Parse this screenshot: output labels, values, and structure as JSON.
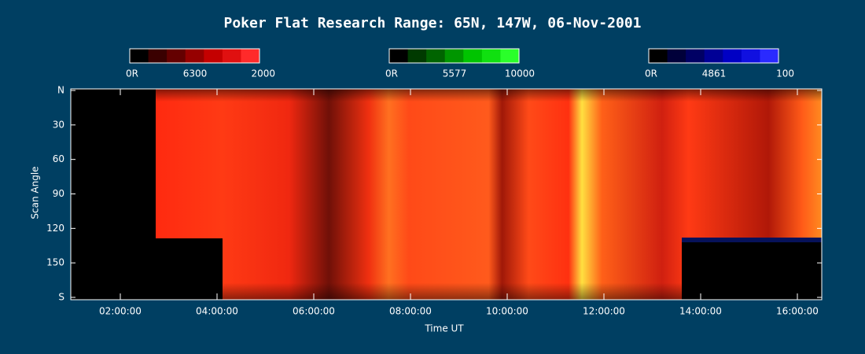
{
  "title": "Poker Flat Research Range: 65N, 147W, 06-Nov-2001",
  "colorbars": [
    {
      "labels": [
        "0R",
        "6300",
        "2000"
      ],
      "colors": [
        "#000000",
        "#3a0000",
        "#640000",
        "#960000",
        "#c40000",
        "#e01010",
        "#ff2a2a"
      ]
    },
    {
      "labels": [
        "0R",
        "5577",
        "10000"
      ],
      "colors": [
        "#000000",
        "#003a00",
        "#006400",
        "#009600",
        "#00c400",
        "#10e010",
        "#2aff2a"
      ]
    },
    {
      "labels": [
        "0R",
        "4861",
        "100"
      ],
      "colors": [
        "#000000",
        "#00003a",
        "#000064",
        "#000096",
        "#0000c4",
        "#1010e0",
        "#2a2aff"
      ]
    }
  ],
  "y_axis": {
    "label": "Scan Angle",
    "ticks": [
      "N",
      "30",
      "60",
      "90",
      "120",
      "150",
      "S"
    ]
  },
  "x_axis": {
    "label": "Time UT",
    "ticks": [
      "02:00:00",
      "04:00:00",
      "06:00:00",
      "08:00:00",
      "10:00:00",
      "12:00:00",
      "14:00:00",
      "16:00:00"
    ]
  }
}
